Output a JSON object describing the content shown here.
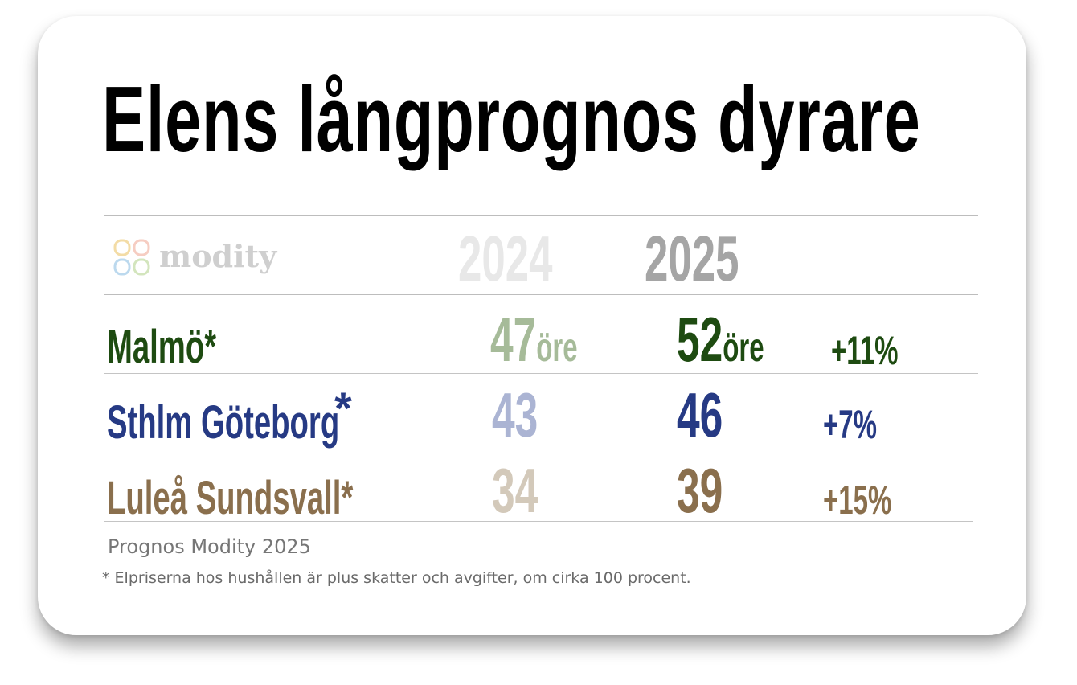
{
  "title": "Elens långprognos dyrare",
  "logo": {
    "text": "modity"
  },
  "years": {
    "previous": "2024",
    "current": "2025"
  },
  "price_unit": "öre",
  "rows": [
    {
      "region": "Malmö*",
      "previous": "47",
      "current": "52",
      "change": "+11%",
      "color": "#1e4b11",
      "previous_color": "#a6bb99"
    },
    {
      "region": "Sthlm Göteborg",
      "region_asterisk": "*",
      "previous": "43",
      "current": "46",
      "change": "+7%",
      "color": "#263a84",
      "previous_color": "#abb4d3"
    },
    {
      "region": "Luleå Sundsvall*",
      "previous": "34",
      "current": "39",
      "change": "+15%",
      "color": "#8a6f4d",
      "previous_color": "#d3c9ba"
    }
  ],
  "source": "Prognos Modity 2025",
  "footnote": "* Elpriserna hos hushållen är plus skatter och avgifter, om cirka 100 procent."
}
